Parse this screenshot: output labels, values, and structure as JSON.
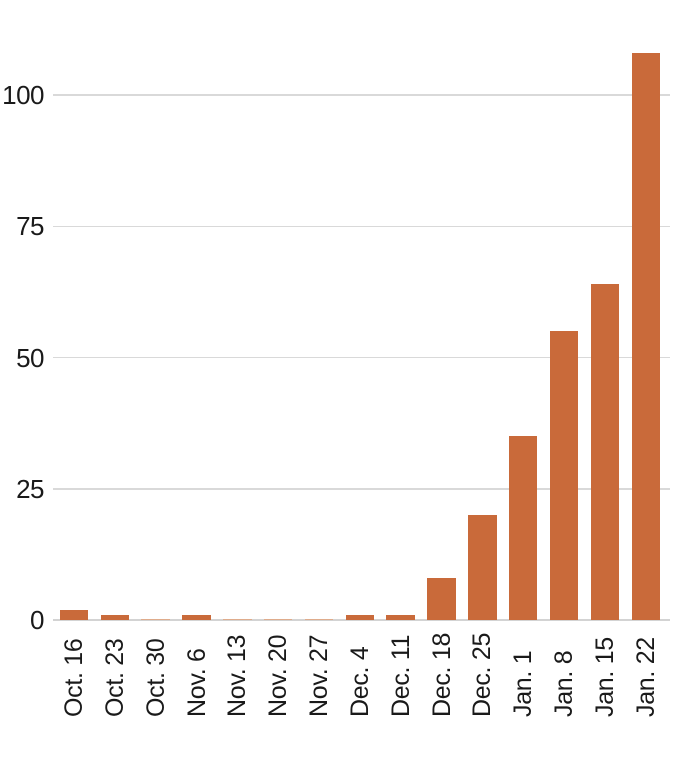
{
  "chart_data": {
    "type": "bar",
    "categories": [
      "Oct. 16",
      "Oct. 23",
      "Oct. 30",
      "Nov. 6",
      "Nov. 13",
      "Nov. 20",
      "Nov. 27",
      "Dec. 4",
      "Dec. 11",
      "Dec. 18",
      "Dec. 25",
      "Jan. 1",
      "Jan. 8",
      "Jan. 15",
      "Jan. 22"
    ],
    "values": [
      2,
      1,
      0,
      1,
      0,
      0,
      0,
      1,
      1,
      8,
      20,
      35,
      55,
      64,
      108
    ],
    "title": "",
    "xlabel": "",
    "ylabel": "",
    "yticks": [
      0,
      25,
      50,
      75,
      100
    ],
    "ylim": [
      0,
      110
    ],
    "grid": "horizontal",
    "legend": "none",
    "colors": {
      "bar": "#C96A3A",
      "zero_bar": "#DFAC8C",
      "gridline": "#D9D9D9",
      "baseline": "#D3D3D3",
      "text": "#1A1A1A"
    }
  }
}
